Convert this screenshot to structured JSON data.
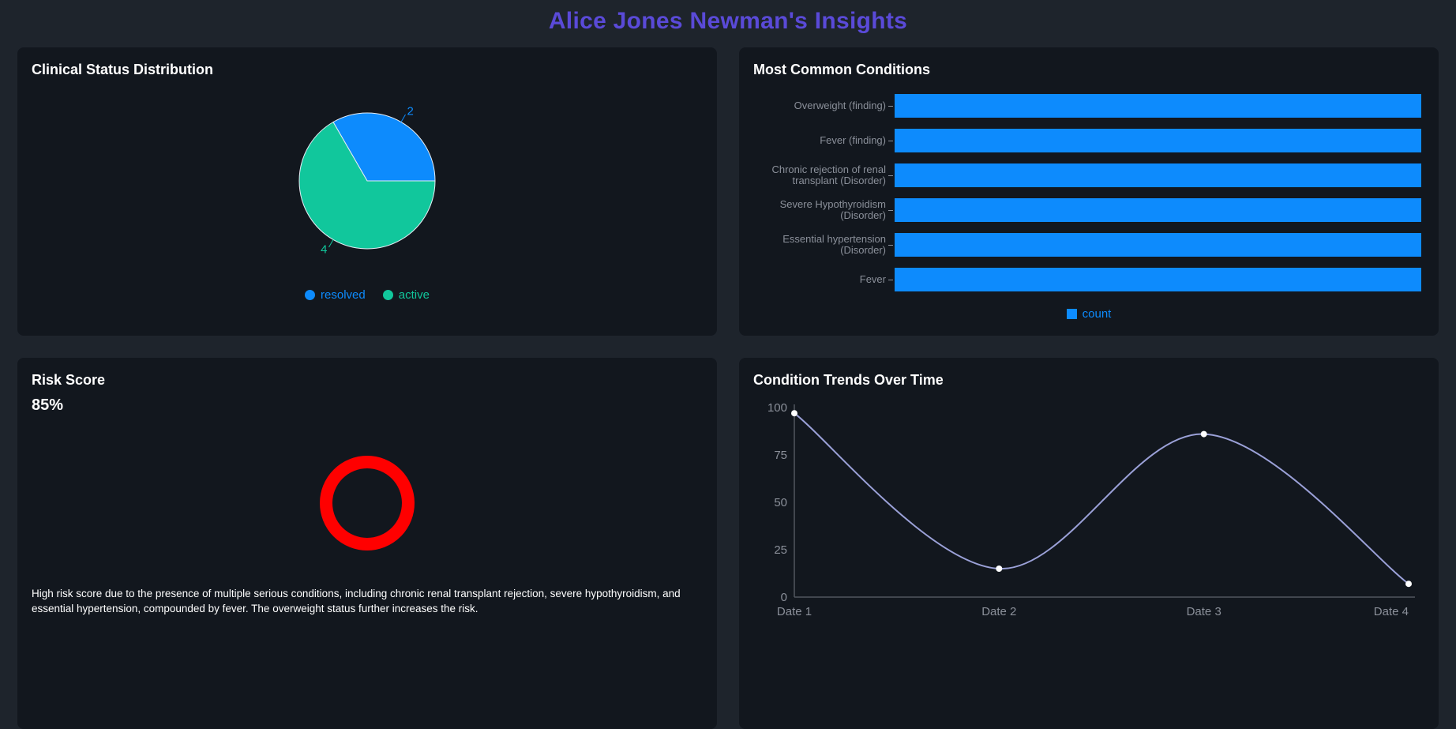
{
  "page": {
    "title": "Alice Jones Newman's Insights",
    "accent_color": "#5a4ad8",
    "background_color": "#1e242c",
    "panel_color": "#12171e"
  },
  "panels": {
    "clinical_status": {
      "title": "Clinical Status Distribution"
    },
    "conditions": {
      "title": "Most Common Conditions"
    },
    "risk": {
      "title": "Risk Score",
      "value": "85%",
      "ring_color": "#ff0000",
      "description": "High risk score due to the presence of multiple serious conditions, including chronic renal transplant rejection, severe hypothyroidism, and essential hypertension, compounded by fever. The overweight status further increases the risk."
    },
    "trends": {
      "title": "Condition Trends Over Time"
    }
  },
  "chart_data": [
    {
      "type": "pie",
      "title": "Clinical Status Distribution",
      "labels": [
        "resolved",
        "active"
      ],
      "values": [
        2,
        4
      ],
      "colors": [
        "#0d8bfd",
        "#11c79c"
      ],
      "legend_position": "bottom"
    },
    {
      "type": "bar",
      "title": "Most Common Conditions",
      "orientation": "horizontal",
      "categories": [
        "Overweight (finding)",
        "Fever (finding)",
        "Chronic rejection of renal transplant (Disorder)",
        "Severe Hypothyroidism (Disorder)",
        "Essential hypertension (Disorder)",
        "Fever"
      ],
      "series": [
        {
          "name": "count",
          "values": [
            1,
            1,
            1,
            1,
            1,
            1
          ],
          "color": "#0d8bfd"
        }
      ],
      "xlim": [
        0,
        1
      ],
      "legend_position": "bottom"
    },
    {
      "type": "line",
      "title": "Condition Trends Over Time",
      "x": [
        "Date 1",
        "Date 2",
        "Date 3",
        "Date 4"
      ],
      "values": [
        97,
        15,
        86,
        7
      ],
      "ylim": [
        0,
        100
      ],
      "yticks": [
        0,
        25,
        50,
        75,
        100
      ],
      "line_color": "#9ba1d8",
      "marker_color": "#ffffff",
      "axis_color": "#51565e",
      "label_color": "#8b909a"
    }
  ]
}
